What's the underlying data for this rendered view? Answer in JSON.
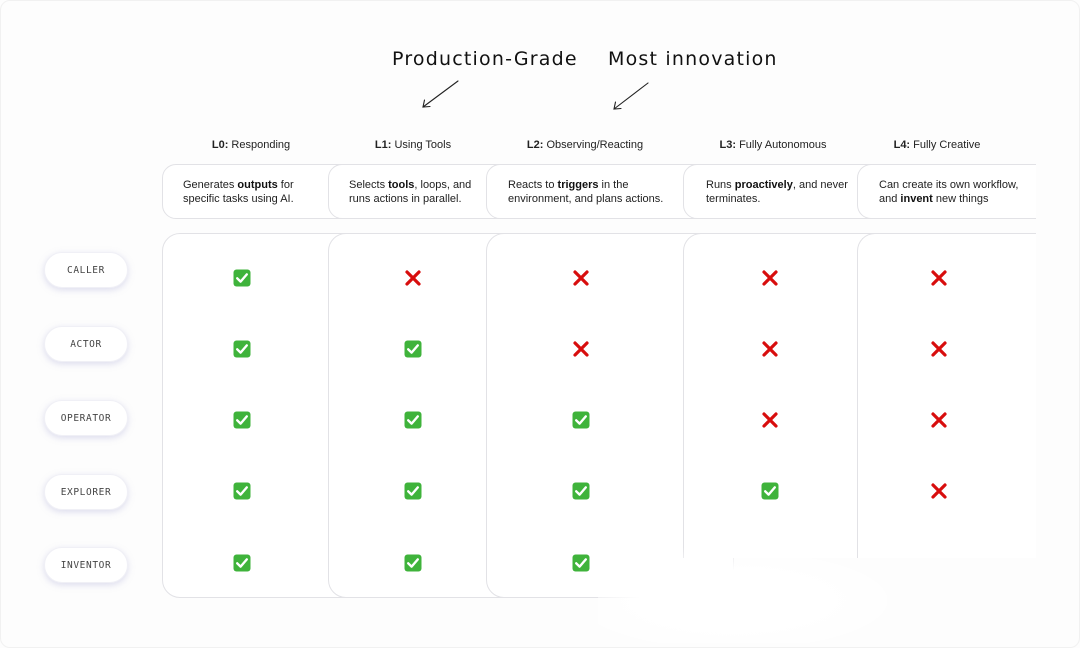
{
  "headings": {
    "production": "Production-Grade",
    "innovation": "Most innovation"
  },
  "levels": [
    {
      "code": "L0:",
      "name": "Responding",
      "desc": [
        {
          "t": "Generates ",
          "b": false
        },
        {
          "t": "outputs",
          "b": true
        },
        {
          "t": " for",
          "b": false
        },
        {
          "t": "\n",
          "b": false
        },
        {
          "t": "specific tasks using AI.",
          "b": false
        }
      ]
    },
    {
      "code": "L1:",
      "name": "Using Tools",
      "desc": [
        {
          "t": "Selects ",
          "b": false
        },
        {
          "t": "tools",
          "b": true
        },
        {
          "t": ", loops, and",
          "b": false
        },
        {
          "t": "\n",
          "b": false
        },
        {
          "t": "runs actions in parallel.",
          "b": false
        }
      ]
    },
    {
      "code": "L2:",
      "name": "Observing/Reacting",
      "desc": [
        {
          "t": "Reacts to ",
          "b": false
        },
        {
          "t": "triggers",
          "b": true
        },
        {
          "t": " in the",
          "b": false
        },
        {
          "t": "\n",
          "b": false
        },
        {
          "t": "environment, and plans actions.",
          "b": false
        }
      ]
    },
    {
      "code": "L3:",
      "name": "Fully Autonomous",
      "desc": [
        {
          "t": "Runs ",
          "b": false
        },
        {
          "t": "proactively",
          "b": true
        },
        {
          "t": ", and never",
          "b": false
        },
        {
          "t": "\n",
          "b": false
        },
        {
          "t": "terminates.",
          "b": false
        }
      ]
    },
    {
      "code": "L4:",
      "name": "Fully Creative",
      "desc": [
        {
          "t": "Can create its own workflow,",
          "b": false
        },
        {
          "t": "\n",
          "b": false
        },
        {
          "t": "and ",
          "b": false
        },
        {
          "t": "invent",
          "b": true
        },
        {
          "t": " new things",
          "b": false
        }
      ]
    }
  ],
  "roles": [
    "CALLER",
    "ACTOR",
    "OPERATOR",
    "EXPLORER",
    "INVENTOR"
  ],
  "matrix": [
    [
      "check",
      "cross",
      "cross",
      "cross",
      "cross"
    ],
    [
      "check",
      "check",
      "cross",
      "cross",
      "cross"
    ],
    [
      "check",
      "check",
      "check",
      "cross",
      "cross"
    ],
    [
      "check",
      "check",
      "check",
      "check",
      "cross"
    ],
    [
      "check",
      "check",
      "check",
      "",
      ""
    ]
  ],
  "colors": {
    "check": "#3fb33b",
    "cross": "#d80d0d"
  }
}
